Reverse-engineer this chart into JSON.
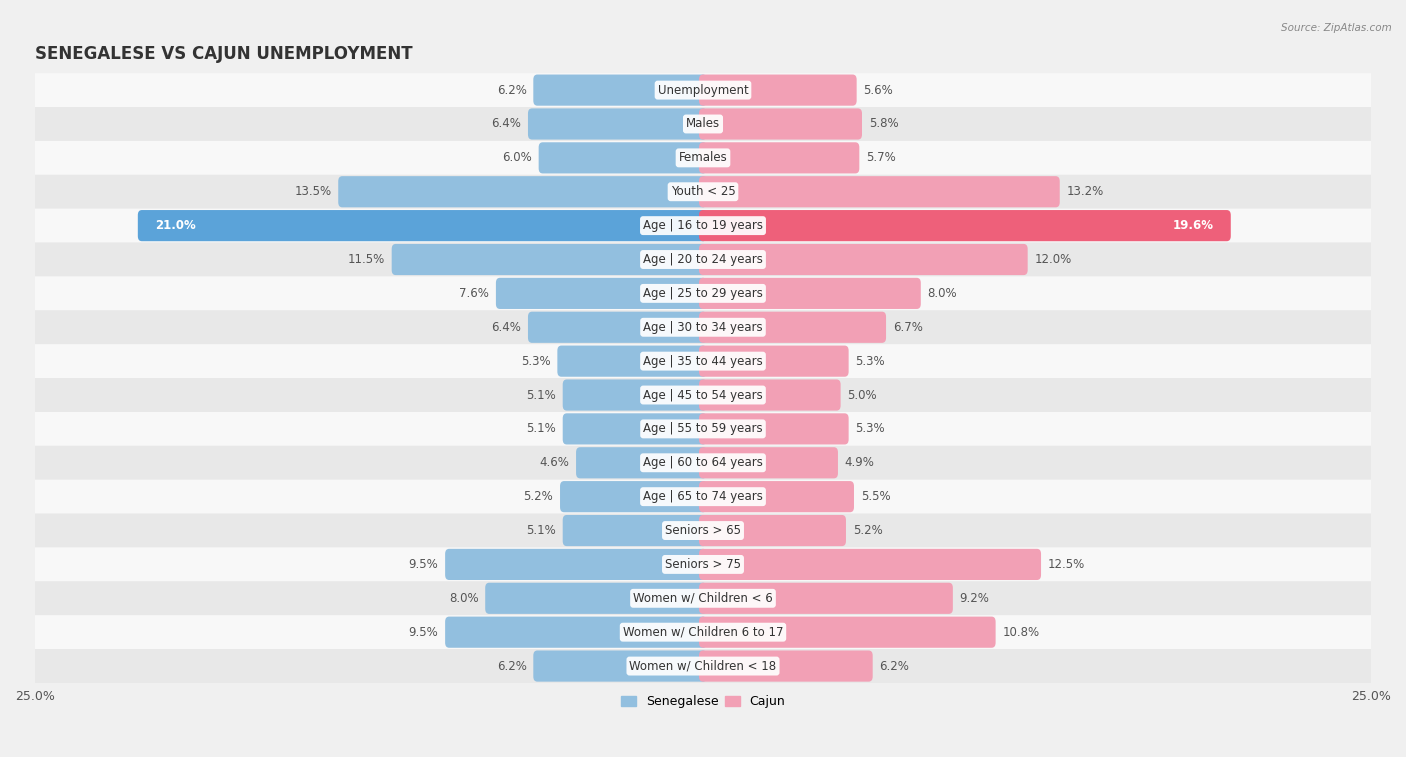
{
  "title": "SENEGALESE VS CAJUN UNEMPLOYMENT",
  "source": "Source: ZipAtlas.com",
  "categories": [
    "Unemployment",
    "Males",
    "Females",
    "Youth < 25",
    "Age | 16 to 19 years",
    "Age | 20 to 24 years",
    "Age | 25 to 29 years",
    "Age | 30 to 34 years",
    "Age | 35 to 44 years",
    "Age | 45 to 54 years",
    "Age | 55 to 59 years",
    "Age | 60 to 64 years",
    "Age | 65 to 74 years",
    "Seniors > 65",
    "Seniors > 75",
    "Women w/ Children < 6",
    "Women w/ Children 6 to 17",
    "Women w/ Children < 18"
  ],
  "senegalese": [
    6.2,
    6.4,
    6.0,
    13.5,
    21.0,
    11.5,
    7.6,
    6.4,
    5.3,
    5.1,
    5.1,
    4.6,
    5.2,
    5.1,
    9.5,
    8.0,
    9.5,
    6.2
  ],
  "cajun": [
    5.6,
    5.8,
    5.7,
    13.2,
    19.6,
    12.0,
    8.0,
    6.7,
    5.3,
    5.0,
    5.3,
    4.9,
    5.5,
    5.2,
    12.5,
    9.2,
    10.8,
    6.2
  ],
  "senegalese_color": "#92bfdf",
  "cajun_color": "#f2a0b5",
  "highlight_senegalese_color": "#5ba3d9",
  "highlight_cajun_color": "#ee607a",
  "axis_max": 25.0,
  "bg_color": "#f0f0f0",
  "row_color_light": "#f8f8f8",
  "row_color_dark": "#e8e8e8",
  "label_fontsize": 8.5,
  "title_fontsize": 12,
  "source_fontsize": 7.5,
  "highlight_indices": [
    4
  ]
}
